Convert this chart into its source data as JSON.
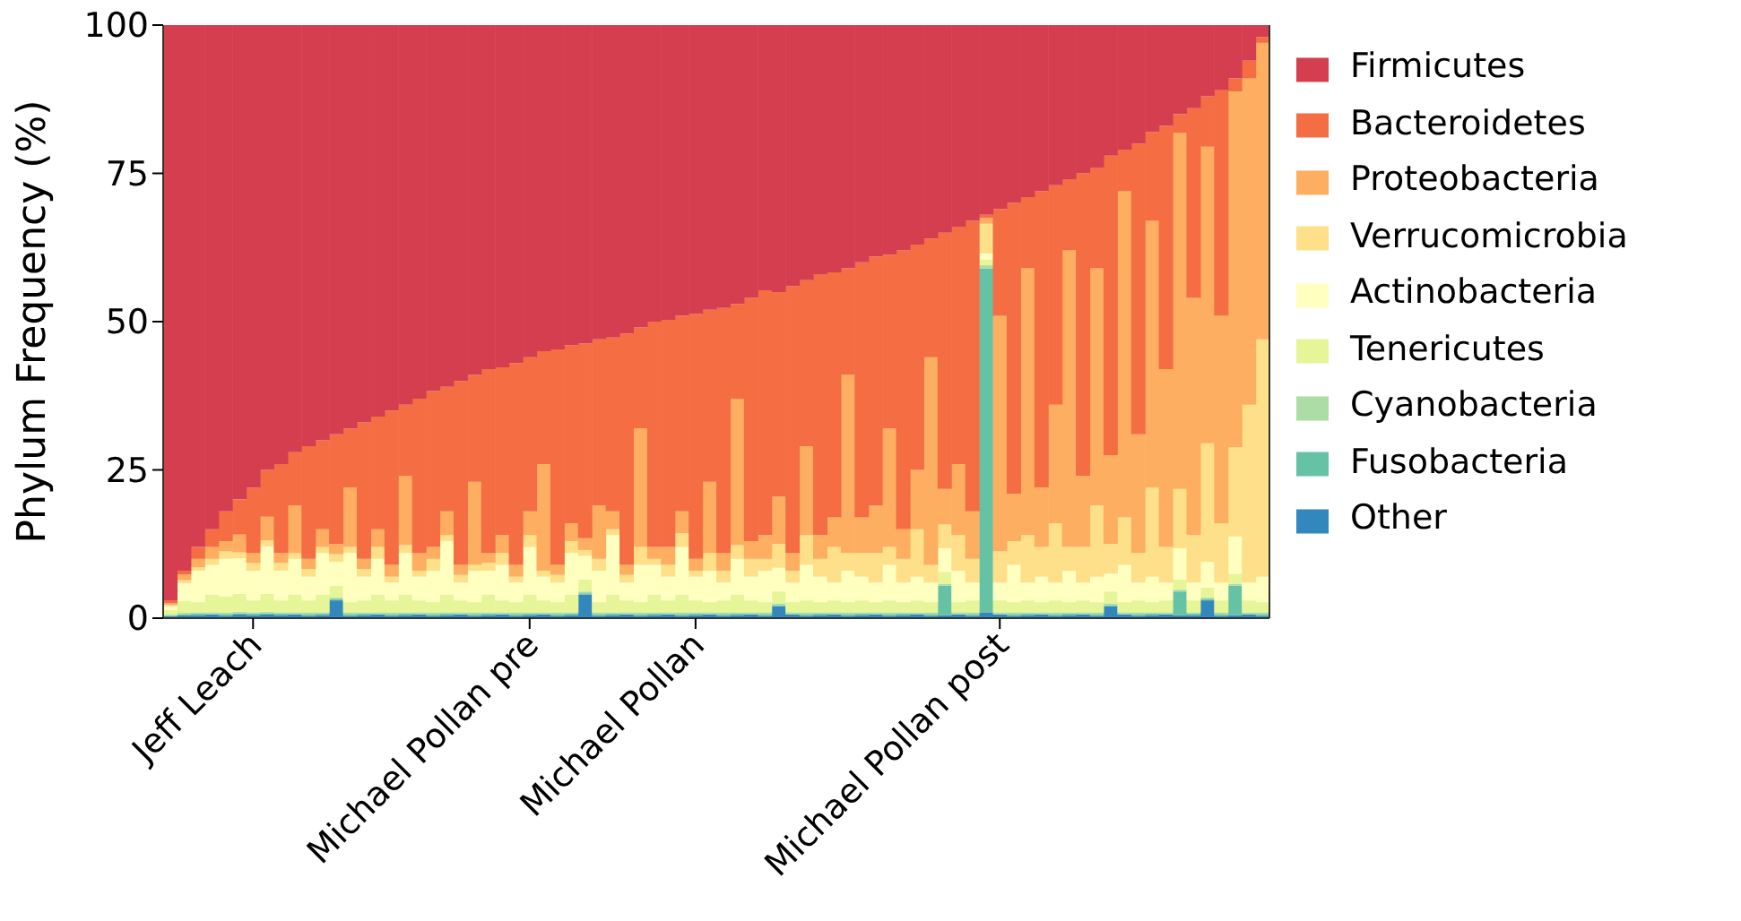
{
  "chart_data": {
    "type": "bar",
    "stacked": true,
    "ylabel": "Phylum Frequency (%)",
    "ylim": [
      0,
      100
    ],
    "yticks": [
      0,
      25,
      50,
      75,
      100
    ],
    "grid": false,
    "legend": "right",
    "categories": [
      null,
      null,
      null,
      null,
      null,
      null,
      "Jeff Leach",
      null,
      null,
      null,
      null,
      null,
      null,
      null,
      null,
      null,
      null,
      null,
      null,
      null,
      null,
      null,
      null,
      null,
      null,
      null,
      "Michael Pollan pre",
      null,
      null,
      null,
      null,
      null,
      null,
      null,
      null,
      null,
      null,
      null,
      "Michael Pollan",
      null,
      null,
      null,
      null,
      null,
      null,
      null,
      null,
      null,
      null,
      null,
      null,
      null,
      null,
      null,
      null,
      null,
      null,
      null,
      null,
      null,
      "Michael Pollan post",
      null,
      null,
      null,
      null,
      null,
      null,
      null,
      null,
      null,
      null,
      null,
      null,
      null,
      null,
      null,
      null,
      null,
      null,
      null
    ],
    "series": [
      {
        "name": "Other",
        "color": "#3288bd",
        "values": [
          0.3,
          0.5,
          0.5,
          0.6,
          0.4,
          0.6,
          0.5,
          0.6,
          0.5,
          0.6,
          0.4,
          0.5,
          3,
          0.4,
          0.5,
          0.6,
          0.4,
          0.5,
          0.6,
          0.4,
          0.5,
          0.6,
          0.4,
          0.5,
          0.6,
          0.4,
          0.5,
          0.6,
          0.4,
          0.5,
          4,
          0.4,
          0.5,
          0.6,
          0.4,
          0.5,
          0.6,
          0.4,
          0.5,
          0.6,
          0.4,
          0.5,
          0.6,
          0.4,
          2,
          0.6,
          0.4,
          0.5,
          0.6,
          0.4,
          0.5,
          0.6,
          0.4,
          0.5,
          0.6,
          0.4,
          0.5,
          0.6,
          0.4,
          1,
          0.6,
          0.4,
          0.5,
          0.6,
          0.4,
          0.5,
          0.6,
          0.4,
          2,
          0.6,
          0.4,
          0.5,
          0.6,
          0.5,
          0.5,
          3,
          0.4,
          0.5,
          0.6,
          0.4
        ]
      },
      {
        "name": "Fusobacteria",
        "color": "#66c2a5",
        "values": [
          0.1,
          0.1,
          0.3,
          0.1,
          0.2,
          0.2,
          0.3,
          0.2,
          0.3,
          0.1,
          0.2,
          0.3,
          0.2,
          0.2,
          0.3,
          0.1,
          0.2,
          0.3,
          0.1,
          0.2,
          0.3,
          0.1,
          0.2,
          0.3,
          0.1,
          0.2,
          0.3,
          0.1,
          0.2,
          0.3,
          0.2,
          0.2,
          0.3,
          0.1,
          0.2,
          0.3,
          0.1,
          0.2,
          0.3,
          0.1,
          0.2,
          0.3,
          0.1,
          0.2,
          0.2,
          0.1,
          0.2,
          0.3,
          0.1,
          0.2,
          0.3,
          0.1,
          0.2,
          0.3,
          0.1,
          0.2,
          5,
          0.1,
          0.2,
          58,
          0.1,
          0.2,
          0.3,
          0.1,
          0.2,
          0.3,
          0.1,
          0.2,
          0.2,
          0.1,
          0.2,
          0.3,
          0.1,
          4,
          0.3,
          0.2,
          0.2,
          5,
          0.1,
          0.2
        ]
      },
      {
        "name": "Cyanobacteria",
        "color": "#abdda4",
        "values": [
          0.2,
          0.3,
          0.2,
          0.3,
          0.4,
          0.3,
          0.2,
          0.3,
          0.2,
          0.3,
          0.4,
          0.2,
          0.3,
          0.4,
          0.2,
          0.3,
          0.4,
          0.2,
          0.3,
          0.4,
          0.2,
          0.3,
          0.4,
          0.2,
          0.3,
          0.4,
          0.2,
          0.3,
          0.4,
          0.2,
          0.3,
          0.4,
          0.2,
          0.3,
          0.4,
          0.2,
          0.3,
          0.4,
          0.2,
          0.3,
          0.4,
          0.2,
          0.3,
          0.4,
          0.3,
          0.3,
          0.4,
          0.2,
          0.3,
          0.4,
          0.2,
          0.3,
          0.4,
          0.2,
          0.3,
          0.4,
          0.3,
          0.3,
          0.4,
          0.5,
          0.3,
          0.4,
          0.2,
          0.3,
          0.4,
          0.2,
          0.3,
          0.4,
          0.3,
          0.3,
          0.4,
          0.2,
          0.3,
          0.3,
          0.2,
          0.3,
          0.4,
          0.3,
          0.3,
          0.4
        ]
      },
      {
        "name": "Tenericutes",
        "color": "#e6f598",
        "values": [
          0.8,
          2,
          1.7,
          3,
          2.7,
          3,
          2,
          3,
          2,
          3,
          2,
          3,
          2,
          1.7,
          2,
          3,
          2,
          3,
          2,
          1.7,
          3,
          2,
          1.7,
          3,
          2,
          1.7,
          3,
          2,
          1.7,
          3,
          2,
          1.7,
          3,
          2,
          1.7,
          3,
          2,
          3,
          2,
          1.7,
          2,
          3,
          2,
          1.7,
          2,
          1.7,
          2,
          1.7,
          2,
          1.7,
          2,
          1.7,
          2,
          1.7,
          2,
          1.7,
          2,
          1.7,
          2,
          1,
          2,
          1.7,
          2,
          1.7,
          2,
          1.7,
          2,
          1.7,
          2,
          1.7,
          2,
          1.7,
          2,
          1.7,
          2,
          1.7,
          2,
          1.7,
          2,
          1.7
        ]
      },
      {
        "name": "Actinobacteria",
        "color": "#ffffbf",
        "values": [
          0.6,
          3,
          5.3,
          5,
          6.3,
          6,
          5,
          8,
          5,
          6,
          4,
          7,
          4,
          8.3,
          4,
          6,
          3,
          7,
          4,
          5.3,
          9,
          3,
          5.3,
          4,
          6,
          3.3,
          8,
          4,
          3.3,
          7,
          4,
          5.3,
          10,
          3,
          6.3,
          5,
          4,
          8,
          4,
          5.3,
          3,
          6,
          4,
          5.3,
          4,
          3.3,
          6,
          4.3,
          3,
          5.3,
          4,
          3.3,
          6,
          3.3,
          4,
          3.3,
          4,
          5.3,
          3,
          1,
          3,
          6.3,
          3,
          4.3,
          3,
          5.3,
          3,
          4.3,
          3,
          6.3,
          3,
          4.3,
          3,
          5.3,
          3,
          4.3,
          3,
          6.3,
          3,
          4.3
        ]
      },
      {
        "name": "Verrucomicrobia",
        "color": "#fee08b",
        "values": [
          0.2,
          0.5,
          0.6,
          1,
          1.3,
          1,
          1.3,
          1,
          1.3,
          1,
          1.3,
          1,
          1.3,
          1,
          1.3,
          2,
          1,
          1.3,
          1,
          2,
          1,
          1.3,
          1,
          1.3,
          2,
          1,
          2,
          1,
          1.3,
          2,
          1,
          2,
          1,
          1.3,
          3,
          1,
          2,
          2.3,
          1,
          3,
          2,
          2.3,
          3,
          2,
          4,
          2,
          5,
          3,
          6,
          3,
          4,
          5,
          3,
          4,
          8,
          3,
          4,
          6,
          4,
          5,
          5.3,
          4,
          8,
          5,
          10,
          4,
          6,
          12,
          5,
          8,
          5,
          15,
          6,
          10,
          8,
          20,
          10,
          15,
          30,
          40
        ]
      },
      {
        "name": "Proteobacteria",
        "color": "#fdae61",
        "values": [
          0.3,
          1,
          1.4,
          2,
          1.7,
          3,
          1.7,
          4,
          1.7,
          8,
          1.7,
          3,
          1.7,
          10,
          1.7,
          3,
          2,
          11.7,
          3,
          2,
          4,
          1.7,
          14,
          1.7,
          3,
          2,
          4,
          18,
          1.7,
          3,
          2,
          9,
          3,
          1.7,
          20,
          2,
          3,
          3.7,
          2,
          12,
          3,
          24.7,
          3,
          4,
          8,
          3,
          15,
          4,
          5,
          30,
          6,
          8,
          20,
          5,
          10,
          35,
          6,
          12,
          8,
          1,
          39.7,
          8,
          45,
          10,
          20,
          50,
          12,
          40,
          15,
          55,
          20,
          45,
          30,
          60,
          40,
          50,
          35,
          60,
          55,
          50
        ]
      },
      {
        "name": "Bacteroidetes",
        "color": "#f46d43",
        "values": [
          0.5,
          0.6,
          2,
          3,
          5,
          5.9,
          11,
          7.9,
          15,
          9,
          19,
          15,
          18.5,
          10,
          23,
          19,
          26,
          12,
          26,
          26.3,
          21,
          31,
          18,
          31,
          28.3,
          34,
          26,
          19,
          36.3,
          30,
          32.8,
          28,
          29.3,
          39,
          17,
          38,
          38.3,
          33,
          41.3,
          29,
          41.3,
          16,
          41,
          41.3,
          34.5,
          45,
          28,
          44,
          41.3,
          18,
          43,
          42,
          29.3,
          47,
          38,
          20,
          43.2,
          40,
          49,
          0.5,
          18,
          49,
          12,
          50,
          37,
          12,
          51,
          17,
          50.5,
          7,
          49,
          15,
          41,
          3.2,
          32,
          8.5,
          38,
          2.2,
          3,
          1
        ]
      },
      {
        "name": "Firmicutes",
        "color": "#d53e4f",
        "values": [
          97,
          92,
          88,
          85,
          82,
          80,
          78,
          75,
          74,
          72,
          71,
          70,
          69,
          68,
          67,
          66,
          65,
          64,
          63,
          61.7,
          61,
          60,
          59,
          58,
          57.7,
          57,
          56,
          55,
          54.7,
          54,
          53.7,
          53,
          52.7,
          52,
          51,
          50,
          49.7,
          49,
          48.7,
          48,
          47.7,
          47,
          46,
          44.7,
          45,
          44,
          43,
          42,
          41.7,
          41,
          40,
          39,
          38.7,
          38,
          37,
          36,
          35,
          34,
          33,
          32,
          31,
          30,
          29,
          28,
          27,
          26,
          25,
          24,
          22,
          21,
          20,
          18,
          17,
          15,
          14,
          12,
          11,
          9,
          6,
          2
        ]
      }
    ]
  }
}
